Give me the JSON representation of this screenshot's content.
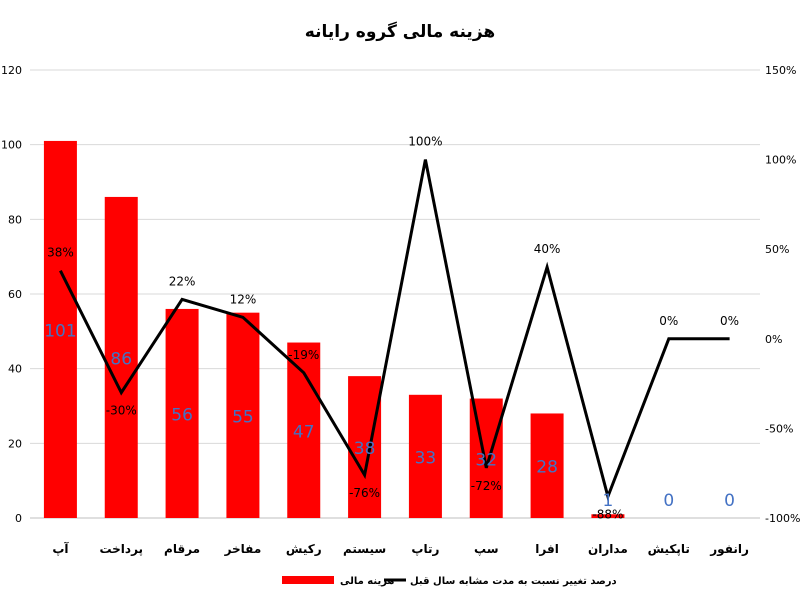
{
  "chart_data": {
    "type": "bar",
    "title": "هزینه مالی گروه رایانه",
    "categories": [
      "آپ",
      "پرداخت",
      "مرقام",
      "مفاخر",
      "رکیش",
      "سیستم",
      "رتاپ",
      "سپ",
      "افرا",
      "مداران",
      "تاپکیش",
      "رانفور"
    ],
    "series": [
      {
        "name": "هزینه مالی",
        "type": "bar",
        "axis": "left",
        "color": "#FF0000",
        "values": [
          101,
          86,
          56,
          55,
          47,
          38,
          33,
          32,
          28,
          1,
          0,
          0
        ],
        "labels": [
          "101",
          "86",
          "56",
          "55",
          "47",
          "38",
          "33",
          "32",
          "28",
          "1",
          "0",
          "0"
        ],
        "label_color": "#4472C4"
      },
      {
        "name": "درصد تغییر نسبت به مدت مشابه سال قبل",
        "type": "line",
        "axis": "right",
        "color": "#000000",
        "values": [
          38,
          -30,
          22,
          12,
          -19,
          -76,
          100,
          -72,
          40,
          -88,
          0,
          0
        ],
        "labels": [
          "38%",
          "-30%",
          "22%",
          "12%",
          "-19%",
          "-76%",
          "100%",
          "-72%",
          "40%",
          "-88%",
          "0%",
          "0%"
        ]
      }
    ],
    "y_left": {
      "ylim": [
        0,
        120
      ],
      "ticks": [
        "0",
        "20",
        "40",
        "60",
        "80",
        "100",
        "120"
      ],
      "tick_values": [
        0,
        20,
        40,
        60,
        80,
        100,
        120
      ]
    },
    "y_right": {
      "ylim": [
        -100,
        150
      ],
      "ticks": [
        "-100%",
        "-50%",
        "0%",
        "50%",
        "100%",
        "150%"
      ],
      "tick_values": [
        -100,
        -50,
        0,
        50,
        100,
        150
      ]
    },
    "grid": true,
    "legend_position": "bottom"
  }
}
